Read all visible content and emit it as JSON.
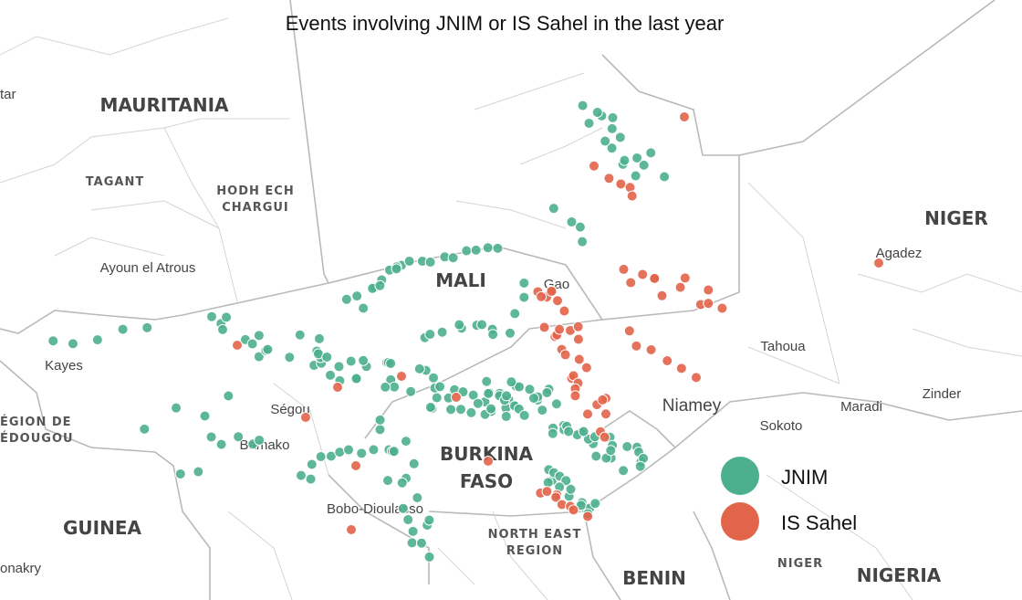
{
  "title": "Events involving JNIM or IS Sahel in the last year",
  "places": [
    {
      "text": "tar",
      "kind": "city"
    },
    {
      "text": "MAURITANIA",
      "kind": "country"
    },
    {
      "text": "TAGANT",
      "kind": "region"
    },
    {
      "text": "HODH ECH",
      "kind": "region"
    },
    {
      "text": "CHARGUI",
      "kind": "region"
    },
    {
      "text": "Ayoun el Atrous",
      "kind": "city"
    },
    {
      "text": "MALI",
      "kind": "country"
    },
    {
      "text": "Gao",
      "kind": "city"
    },
    {
      "text": "NIGER",
      "kind": "country"
    },
    {
      "text": "Agadez",
      "kind": "city"
    },
    {
      "text": "Kayes",
      "kind": "city"
    },
    {
      "text": "Ségou",
      "kind": "city"
    },
    {
      "text": "Bamako",
      "kind": "city"
    },
    {
      "text": "Bobo-Dioulasso",
      "kind": "city"
    },
    {
      "text": "BURKINA",
      "kind": "country"
    },
    {
      "text": "FASO",
      "kind": "country"
    },
    {
      "text": "Tahoua",
      "kind": "city"
    },
    {
      "text": "Niamey",
      "kind": "capital"
    },
    {
      "text": "Maradi",
      "kind": "city"
    },
    {
      "text": "Zinder",
      "kind": "city"
    },
    {
      "text": "Sokoto",
      "kind": "city"
    },
    {
      "text": "ÉGION DE",
      "kind": "region"
    },
    {
      "text": "ÉDOUGOU",
      "kind": "region"
    },
    {
      "text": "GUINEA",
      "kind": "country"
    },
    {
      "text": "onakry",
      "kind": "city"
    },
    {
      "text": "NORTH EAST",
      "kind": "region"
    },
    {
      "text": "REGION",
      "kind": "region"
    },
    {
      "text": "BENIN",
      "kind": "country"
    },
    {
      "text": "NIGER",
      "kind": "region"
    },
    {
      "text": "NIGERIA",
      "kind": "country"
    }
  ],
  "legend": [
    {
      "name": "JNIM",
      "color": "#4caf8e"
    },
    {
      "name": "IS Sahel",
      "color": "#e2644a"
    }
  ]
}
